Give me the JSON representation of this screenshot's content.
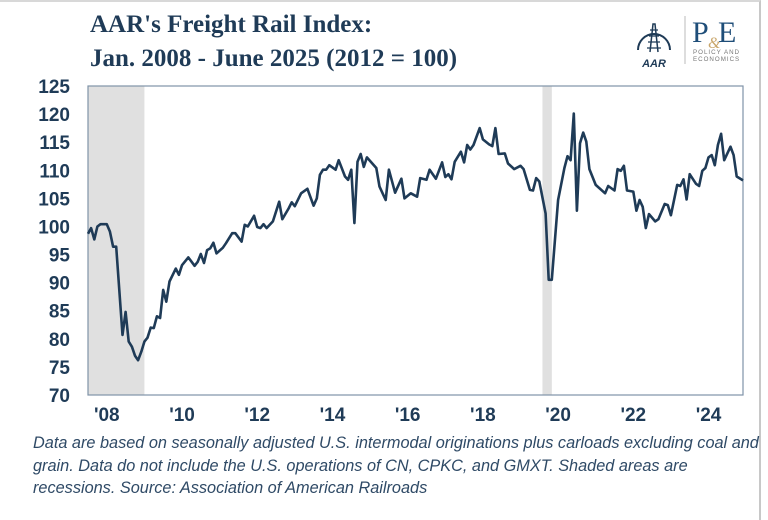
{
  "title": {
    "line1": "AAR's Freight Rail Index:",
    "line2": "Jan. 2008 - June 2025 (2012 = 100)"
  },
  "logo": {
    "aar": "AAR",
    "pe": "P&E",
    "pe_sub1": "POLICY AND",
    "pe_sub2": "ECONOMICS"
  },
  "footnote": "Data are based on seasonally adjusted U.S. intermodal originations plus carloads excluding coal and grain. Data do not include the U.S. operations of CN, CPKC, and GMXT. Shaded areas are recessions. Source: Association of American Railroads",
  "colors": {
    "line": "#1f3b57",
    "recession": "#e0e0e0",
    "axis": "#7f93a8",
    "text": "#1f3b57"
  },
  "chart_data": {
    "type": "line",
    "title": "AAR's Freight Rail Index: Jan. 2008 - June 2025 (2012 = 100)",
    "xlabel": "",
    "ylabel": "",
    "ylim": [
      70,
      125
    ],
    "xlim": [
      "2008-01",
      "2025-06"
    ],
    "yticks": [
      70,
      75,
      80,
      85,
      90,
      95,
      100,
      105,
      110,
      115,
      120,
      125
    ],
    "xtick_labels": [
      "'08",
      "'10",
      "'12",
      "'14",
      "'16",
      "'18",
      "'20",
      "'22",
      "'24"
    ],
    "xtick_years": [
      2008,
      2010,
      2012,
      2014,
      2016,
      2018,
      2020,
      2022,
      2024
    ],
    "grid": false,
    "legend": "none",
    "recessions": [
      [
        "2008-01",
        "2009-06"
      ],
      [
        "2020-02",
        "2020-04"
      ]
    ],
    "dates": [
      "2008-01",
      "2008-02",
      "2008-03",
      "2008-04",
      "2008-05",
      "2008-07",
      "2008-08",
      "2008-09",
      "2008-10",
      "2008-12",
      "2009-01",
      "2009-02",
      "2009-03",
      "2009-04",
      "2009-05",
      "2009-06",
      "2009-07",
      "2009-08",
      "2009-09",
      "2009-10",
      "2009-11",
      "2009-12",
      "2010-01",
      "2010-02",
      "2010-03",
      "2010-05",
      "2010-06",
      "2010-07",
      "2010-09",
      "2010-11",
      "2010-12",
      "2011-01",
      "2011-02",
      "2011-03",
      "2011-04",
      "2011-05",
      "2011-06",
      "2011-08",
      "2011-09",
      "2011-11",
      "2011-12",
      "2012-02",
      "2012-03",
      "2012-04",
      "2012-06",
      "2012-07",
      "2012-08",
      "2012-09",
      "2012-10",
      "2012-12",
      "2013-02",
      "2013-03",
      "2013-05",
      "2013-06",
      "2013-07",
      "2013-09",
      "2013-11",
      "2014-01",
      "2014-02",
      "2014-03",
      "2014-04",
      "2014-05",
      "2014-06",
      "2014-08",
      "2014-09",
      "2014-11",
      "2014-12",
      "2015-01",
      "2015-02",
      "2015-03",
      "2015-04",
      "2015-05",
      "2015-06",
      "2015-09",
      "2015-10",
      "2015-12",
      "2016-01",
      "2016-03",
      "2016-05",
      "2016-06",
      "2016-08",
      "2016-10",
      "2016-11",
      "2017-01",
      "2017-02",
      "2017-04",
      "2017-06",
      "2017-07",
      "2017-08",
      "2017-09",
      "2017-10",
      "2017-12",
      "2018-01",
      "2018-02",
      "2018-03",
      "2018-04",
      "2018-06",
      "2018-07",
      "2018-09",
      "2018-10",
      "2018-11",
      "2018-12",
      "2019-02",
      "2019-03",
      "2019-05",
      "2019-07",
      "2019-08",
      "2019-10",
      "2019-11",
      "2019-12",
      "2020-01",
      "2020-03",
      "2020-04",
      "2020-05",
      "2020-07",
      "2020-09",
      "2020-10",
      "2020-11",
      "2020-12",
      "2021-01",
      "2021-02",
      "2021-03",
      "2021-04",
      "2021-05",
      "2021-07",
      "2021-10",
      "2021-11",
      "2022-01",
      "2022-02",
      "2022-03",
      "2022-04",
      "2022-05",
      "2022-07",
      "2022-08",
      "2022-09",
      "2022-10",
      "2022-11",
      "2022-12",
      "2023-02",
      "2023-03",
      "2023-05",
      "2023-06",
      "2023-07",
      "2023-09",
      "2023-10",
      "2023-11",
      "2023-12",
      "2024-01",
      "2024-03",
      "2024-04",
      "2024-05",
      "2024-06",
      "2024-07",
      "2024-08",
      "2024-09",
      "2024-10",
      "2024-11",
      "2024-12",
      "2025-02",
      "2025-03",
      "2025-04",
      "2025-06"
    ],
    "values": [
      98.7,
      99.7,
      97.7,
      100.0,
      100.4,
      100.4,
      99.1,
      96.4,
      96.4,
      80.7,
      84.8,
      79.5,
      78.6,
      77.0,
      76.2,
      77.7,
      79.5,
      80.2,
      82.0,
      81.9,
      84.0,
      83.7,
      88.7,
      86.6,
      90.2,
      92.5,
      91.4,
      93.1,
      94.5,
      93.0,
      93.7,
      95.1,
      93.5,
      95.8,
      96.1,
      97.1,
      95.2,
      96.2,
      97.0,
      98.8,
      98.8,
      97.3,
      100.3,
      100.0,
      101.9,
      99.9,
      99.7,
      100.4,
      99.7,
      100.9,
      104.4,
      101.3,
      103.2,
      104.3,
      103.6,
      105.9,
      106.7,
      103.7,
      105.0,
      109.2,
      110.1,
      110.1,
      110.9,
      110.1,
      111.8,
      108.9,
      108.3,
      110.1,
      100.6,
      111.5,
      112.9,
      110.6,
      112.3,
      110.4,
      107.1,
      104.7,
      110.1,
      106.0,
      108.5,
      105.0,
      105.9,
      105.3,
      108.6,
      108.3,
      110.1,
      108.5,
      111.4,
      108.8,
      109.3,
      108.4,
      111.5,
      113.3,
      111.4,
      114.5,
      113.7,
      114.5,
      117.5,
      115.5,
      114.6,
      114.3,
      117.5,
      112.9,
      113.0,
      111.2,
      110.2,
      110.8,
      110.2,
      106.5,
      106.4,
      108.6,
      108.0,
      102.3,
      90.5,
      90.5,
      104.7,
      110.4,
      112.5,
      111.8,
      120.1,
      102.8,
      114.8,
      116.7,
      115.1,
      110.2,
      107.4,
      105.9,
      107.2,
      106.4,
      110.2,
      109.9,
      110.8,
      106.4,
      106.2,
      102.8,
      104.7,
      103.5,
      99.7,
      102.2,
      100.9,
      101.3,
      104.0,
      103.8,
      102.0,
      107.4,
      107.2,
      108.4,
      104.8,
      109.3,
      107.6,
      107.2,
      109.9,
      110.4,
      112.3,
      112.7,
      110.9,
      114.5,
      116.5,
      111.8,
      114.2,
      112.7,
      108.9,
      108.2
    ]
  }
}
